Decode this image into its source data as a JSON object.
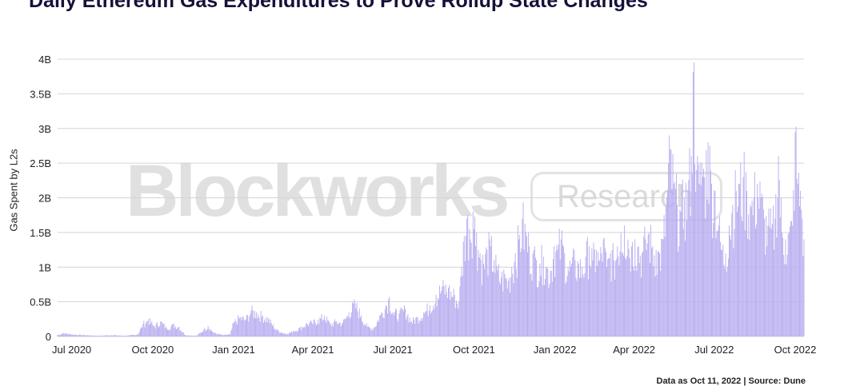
{
  "chart_data": {
    "type": "bar",
    "title": "Daily Ethereum Gas Expenditures to Prove Rollup State Changes",
    "ylabel": "Gas Spent by L2s",
    "xlabel": "",
    "footer": "Data as Oct 11, 2022 | Source: Dune",
    "watermark": {
      "brand": "Blockworks",
      "tag": "Research"
    },
    "colors": {
      "bar": "#b9aef0",
      "bar_edge": "#a99ce8",
      "grid": "#d4d4d4",
      "title": "#14113a"
    },
    "ylim": [
      0,
      4000000000
    ],
    "y_ticks": [
      {
        "value": 0,
        "label": "0"
      },
      {
        "value": 500000000,
        "label": "0.5B"
      },
      {
        "value": 1000000000,
        "label": "1B"
      },
      {
        "value": 1500000000,
        "label": "1.5B"
      },
      {
        "value": 2000000000,
        "label": "2B"
      },
      {
        "value": 2500000000,
        "label": "2.5B"
      },
      {
        "value": 3000000000,
        "label": "3B"
      },
      {
        "value": 3500000000,
        "label": "3.5B"
      },
      {
        "value": 4000000000,
        "label": "4B"
      }
    ],
    "x_range": [
      "2020-06-15",
      "2022-10-11"
    ],
    "x_ticks": [
      {
        "date": "2020-07-01",
        "label": "Jul 2020"
      },
      {
        "date": "2020-10-01",
        "label": "Oct 2020"
      },
      {
        "date": "2021-01-01",
        "label": "Jan 2021"
      },
      {
        "date": "2021-04-01",
        "label": "Apr 2021"
      },
      {
        "date": "2021-07-01",
        "label": "Jul 2021"
      },
      {
        "date": "2021-10-01",
        "label": "Oct 2021"
      },
      {
        "date": "2022-01-01",
        "label": "Jan 2022"
      },
      {
        "date": "2022-04-01",
        "label": "Apr 2022"
      },
      {
        "date": "2022-07-01",
        "label": "Jul 2022"
      },
      {
        "date": "2022-10-01",
        "label": "Oct 2022"
      }
    ],
    "series": [
      {
        "points": [
          [
            "2020-06-15",
            0.02
          ],
          [
            "2020-06-22",
            0.05
          ],
          [
            "2020-07-01",
            0.03
          ],
          [
            "2020-07-15",
            0.02
          ],
          [
            "2020-08-01",
            0.01
          ],
          [
            "2020-08-15",
            0.02
          ],
          [
            "2020-09-01",
            0.01
          ],
          [
            "2020-09-14",
            0.03
          ],
          [
            "2020-09-20",
            0.18
          ],
          [
            "2020-09-26",
            0.25
          ],
          [
            "2020-10-03",
            0.15
          ],
          [
            "2020-10-10",
            0.22
          ],
          [
            "2020-10-17",
            0.12
          ],
          [
            "2020-10-24",
            0.17
          ],
          [
            "2020-10-31",
            0.14
          ],
          [
            "2020-11-07",
            0.02
          ],
          [
            "2020-11-20",
            0.01
          ],
          [
            "2020-11-28",
            0.1
          ],
          [
            "2020-12-03",
            0.15
          ],
          [
            "2020-12-10",
            0.05
          ],
          [
            "2020-12-20",
            0.02
          ],
          [
            "2020-12-28",
            0.03
          ],
          [
            "2021-01-01",
            0.2
          ],
          [
            "2021-01-08",
            0.28
          ],
          [
            "2021-01-15",
            0.25
          ],
          [
            "2021-01-21",
            0.38
          ],
          [
            "2021-01-27",
            0.35
          ],
          [
            "2021-02-03",
            0.3
          ],
          [
            "2021-02-10",
            0.25
          ],
          [
            "2021-02-17",
            0.12
          ],
          [
            "2021-02-24",
            0.06
          ],
          [
            "2021-03-03",
            0.04
          ],
          [
            "2021-03-10",
            0.08
          ],
          [
            "2021-03-17",
            0.12
          ],
          [
            "2021-03-24",
            0.18
          ],
          [
            "2021-03-31",
            0.2
          ],
          [
            "2021-04-07",
            0.24
          ],
          [
            "2021-04-14",
            0.3
          ],
          [
            "2021-04-21",
            0.18
          ],
          [
            "2021-04-28",
            0.22
          ],
          [
            "2021-05-05",
            0.2
          ],
          [
            "2021-05-12",
            0.35
          ],
          [
            "2021-05-19",
            0.48
          ],
          [
            "2021-05-26",
            0.3
          ],
          [
            "2021-06-02",
            0.14
          ],
          [
            "2021-06-09",
            0.12
          ],
          [
            "2021-06-16",
            0.3
          ],
          [
            "2021-06-23",
            0.45
          ],
          [
            "2021-06-27",
            0.57
          ],
          [
            "2021-07-01",
            0.35
          ],
          [
            "2021-07-08",
            0.33
          ],
          [
            "2021-07-15",
            0.4
          ],
          [
            "2021-07-22",
            0.22
          ],
          [
            "2021-07-29",
            0.28
          ],
          [
            "2021-08-05",
            0.35
          ],
          [
            "2021-08-12",
            0.45
          ],
          [
            "2021-08-19",
            0.6
          ],
          [
            "2021-08-26",
            0.72
          ],
          [
            "2021-09-02",
            0.7
          ],
          [
            "2021-09-09",
            0.6
          ],
          [
            "2021-09-14",
            0.5
          ],
          [
            "2021-09-17",
            1.0
          ],
          [
            "2021-09-20",
            1.45
          ],
          [
            "2021-09-23",
            1.7
          ],
          [
            "2021-09-26",
            1.55
          ],
          [
            "2021-09-30",
            1.8
          ],
          [
            "2021-10-04",
            1.5
          ],
          [
            "2021-10-08",
            1.2
          ],
          [
            "2021-10-12",
            1.05
          ],
          [
            "2021-10-16",
            1.25
          ],
          [
            "2021-10-20",
            1.3
          ],
          [
            "2021-10-24",
            1.1
          ],
          [
            "2021-10-28",
            0.95
          ],
          [
            "2021-11-01",
            0.85
          ],
          [
            "2021-11-05",
            0.9
          ],
          [
            "2021-11-09",
            0.8
          ],
          [
            "2021-11-13",
            1.0
          ],
          [
            "2021-11-17",
            1.2
          ],
          [
            "2021-11-21",
            1.4
          ],
          [
            "2021-11-25",
            1.7
          ],
          [
            "2021-11-29",
            1.5
          ],
          [
            "2021-12-03",
            1.3
          ],
          [
            "2021-12-07",
            1.2
          ],
          [
            "2021-12-11",
            1.1
          ],
          [
            "2021-12-15",
            1.05
          ],
          [
            "2021-12-19",
            1.15
          ],
          [
            "2021-12-23",
            1.0
          ],
          [
            "2021-12-27",
            0.95
          ],
          [
            "2021-12-31",
            1.3
          ],
          [
            "2022-01-04",
            1.25
          ],
          [
            "2022-01-08",
            1.4
          ],
          [
            "2022-01-12",
            1.2
          ],
          [
            "2022-01-16",
            1.0
          ],
          [
            "2022-01-20",
            1.05
          ],
          [
            "2022-01-24",
            1.1
          ],
          [
            "2022-01-28",
            1.05
          ],
          [
            "2022-02-01",
            1.0
          ],
          [
            "2022-02-05",
            1.15
          ],
          [
            "2022-02-09",
            1.3
          ],
          [
            "2022-02-13",
            1.1
          ],
          [
            "2022-02-17",
            1.25
          ],
          [
            "2022-02-21",
            1.1
          ],
          [
            "2022-02-25",
            1.4
          ],
          [
            "2022-03-01",
            1.0
          ],
          [
            "2022-03-05",
            1.2
          ],
          [
            "2022-03-09",
            1.1
          ],
          [
            "2022-03-13",
            1.3
          ],
          [
            "2022-03-17",
            1.5
          ],
          [
            "2022-03-21",
            1.6
          ],
          [
            "2022-03-25",
            1.4
          ],
          [
            "2022-03-29",
            1.3
          ],
          [
            "2022-04-02",
            1.4
          ],
          [
            "2022-04-06",
            1.3
          ],
          [
            "2022-04-10",
            1.2
          ],
          [
            "2022-04-14",
            1.4
          ],
          [
            "2022-04-18",
            1.5
          ],
          [
            "2022-04-22",
            1.3
          ],
          [
            "2022-04-26",
            1.25
          ],
          [
            "2022-04-30",
            1.2
          ],
          [
            "2022-05-04",
            1.4
          ],
          [
            "2022-05-08",
            2.0
          ],
          [
            "2022-05-12",
            2.7
          ],
          [
            "2022-05-16",
            2.2
          ],
          [
            "2022-05-20",
            1.9
          ],
          [
            "2022-05-24",
            1.8
          ],
          [
            "2022-05-28",
            2.0
          ],
          [
            "2022-06-01",
            2.1
          ],
          [
            "2022-06-05",
            2.6
          ],
          [
            "2022-06-08",
            3.95
          ],
          [
            "2022-06-11",
            2.4
          ],
          [
            "2022-06-14",
            2.2
          ],
          [
            "2022-06-17",
            2.5
          ],
          [
            "2022-06-20",
            2.3
          ],
          [
            "2022-06-24",
            2.8
          ],
          [
            "2022-06-28",
            2.2
          ],
          [
            "2022-07-02",
            2.1
          ],
          [
            "2022-07-06",
            1.6
          ],
          [
            "2022-07-10",
            1.25
          ],
          [
            "2022-07-14",
            1.2
          ],
          [
            "2022-07-18",
            1.6
          ],
          [
            "2022-07-22",
            1.9
          ],
          [
            "2022-07-26",
            2.1
          ],
          [
            "2022-07-30",
            2.2
          ],
          [
            "2022-08-03",
            2.3
          ],
          [
            "2022-08-07",
            2.1
          ],
          [
            "2022-08-11",
            1.9
          ],
          [
            "2022-08-15",
            2.0
          ],
          [
            "2022-08-19",
            2.2
          ],
          [
            "2022-08-23",
            2.0
          ],
          [
            "2022-08-27",
            1.7
          ],
          [
            "2022-08-31",
            1.6
          ],
          [
            "2022-09-04",
            1.55
          ],
          [
            "2022-09-08",
            1.7
          ],
          [
            "2022-09-12",
            2.6
          ],
          [
            "2022-09-16",
            1.5
          ],
          [
            "2022-09-20",
            1.4
          ],
          [
            "2022-09-24",
            1.5
          ],
          [
            "2022-09-28",
            1.6
          ],
          [
            "2022-10-01",
            2.95
          ],
          [
            "2022-10-04",
            2.2
          ],
          [
            "2022-10-07",
            2.1
          ],
          [
            "2022-10-09",
            1.7
          ],
          [
            "2022-10-11",
            1.4
          ]
        ],
        "value_unit_multiplier": 1000000000
      }
    ]
  }
}
